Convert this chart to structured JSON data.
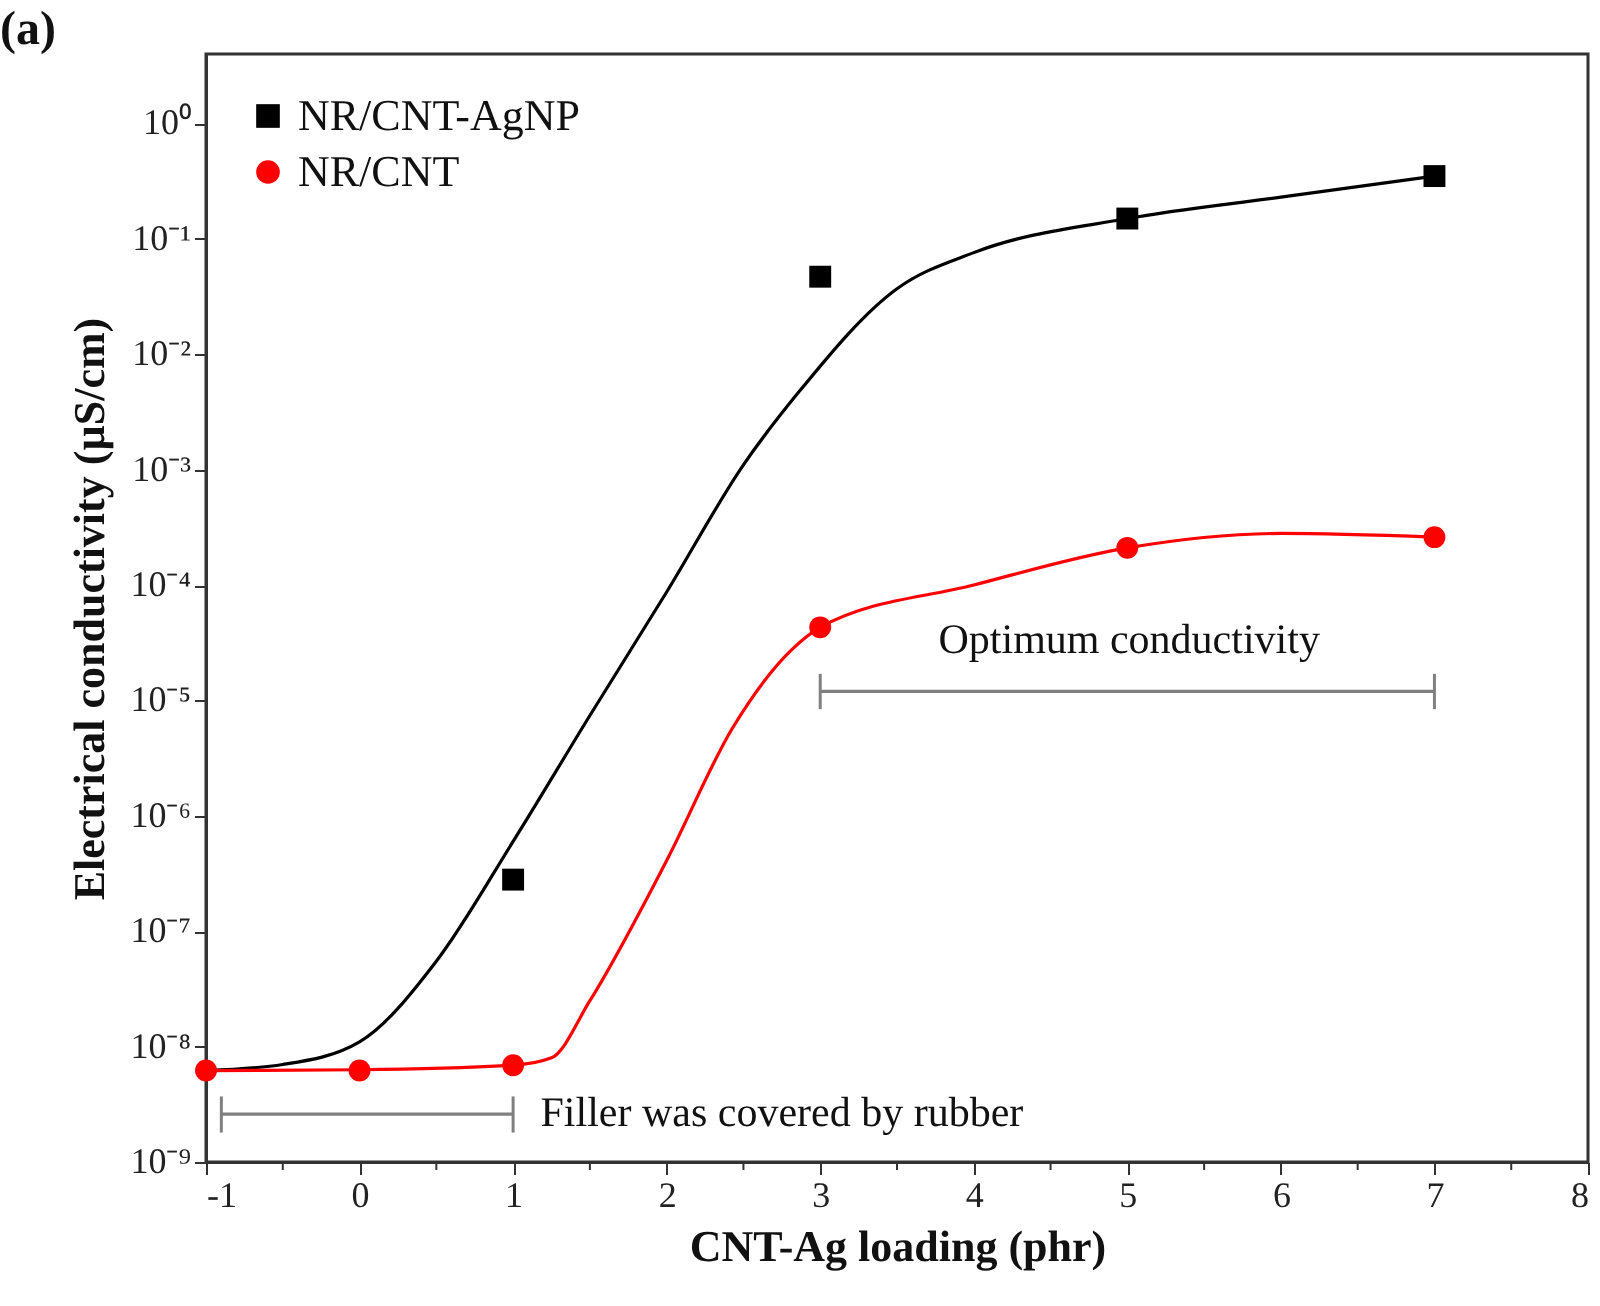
{
  "chart_data": {
    "type": "scatter",
    "title": "(a)",
    "xlabel": "CNT-Ag loading (phr)",
    "ylabel": "Electrical conductivity (µS/cm)",
    "x": [
      -1,
      0,
      1,
      3,
      5,
      7
    ],
    "series": [
      {
        "name": "NR/CNT-AgNP",
        "type": "scatter",
        "marker": "square",
        "color": "#000000",
        "values": [
          null,
          null,
          2.8e-07,
          0.047,
          0.15,
          0.35
        ]
      },
      {
        "name": "NR/CNT",
        "type": "scatter",
        "marker": "circle",
        "color": "#ff0000",
        "values": [
          6.2e-09,
          6.2e-09,
          6.9e-09,
          4.3e-05,
          0.00021,
          0.00026
        ]
      },
      {
        "type": "line",
        "marker": "none",
        "color": "#000000",
        "x": [
          -1,
          -0.5,
          0,
          0.5,
          1,
          1.5,
          2,
          2.5,
          2.86,
          3.5,
          4,
          5,
          6,
          7
        ],
        "values": [
          6.2e-09,
          7e-09,
          1.1e-08,
          5.5e-08,
          6e-07,
          7.4e-06,
          8.7e-05,
          0.0011,
          0.0047,
          0.037,
          0.076,
          0.15,
          0.23,
          0.35
        ]
      },
      {
        "type": "line",
        "marker": "none",
        "color": "#ff0000",
        "x": [
          -1,
          0,
          1,
          1.25,
          1.5,
          2,
          2.43,
          2.82,
          3,
          4,
          5,
          6,
          7
        ],
        "values": [
          6.2e-09,
          6.3e-09,
          6.9e-09,
          8e-09,
          2.5e-08,
          4.1e-07,
          5.8e-06,
          2.8e-05,
          4.3e-05,
          0.0001,
          0.00021,
          0.00028,
          0.00026
        ]
      },
      {
        "type": "line",
        "marker": "none",
        "color": "#808080",
        "x": [
          -0.9,
          1
        ],
        "values": [
          2.6e-09,
          2.6e-09
        ],
        "errors": [
          [
            1.8e-09,
            3.7e-09
          ],
          [
            1.8e-09,
            3.7e-09
          ]
        ]
      },
      {
        "type": "line",
        "marker": "none",
        "color": "#808080",
        "x": [
          3,
          7
        ],
        "values": [
          1.2e-05,
          1.2e-05
        ],
        "errors": [
          [
            8.4e-06,
            1.7e-05
          ],
          [
            8.4e-06,
            1.7e-05
          ]
        ]
      }
    ],
    "annotations": [
      "Filler was covered by rubber",
      "Optimum conductivity"
    ],
    "log": "y",
    "legend": "top left",
    "xlim": [
      -1,
      8
    ],
    "xticks": [
      -1,
      {
        "value": -0.5,
        "label": null
      },
      0,
      {
        "value": 0.5,
        "label": null
      },
      1,
      {
        "value": 1.5,
        "label": null
      },
      2,
      {
        "value": 2.5,
        "label": null
      },
      3,
      {
        "value": 3.5,
        "label": null
      },
      4,
      {
        "value": 4.5,
        "label": null
      },
      5,
      {
        "value": 5.5,
        "label": null
      },
      6,
      {
        "value": 6.5,
        "label": null
      },
      7,
      {
        "value": 7.5,
        "label": null
      },
      8
    ],
    "ylim": [
      1e-09,
      4
    ],
    "yticks": [
      {
        "value": 1e-09,
        "label": "10⁻⁹"
      },
      {
        "value": 1e-08,
        "label": "10⁻⁸"
      },
      {
        "value": 1e-07,
        "label": "10⁻⁷"
      },
      {
        "value": 1e-06,
        "label": "10⁻⁶"
      },
      {
        "value": 1e-05,
        "label": "10⁻⁵"
      },
      {
        "value": 0.0001,
        "label": "10⁻⁴"
      },
      {
        "value": 0.001,
        "label": "10⁻³"
      },
      {
        "value": 0.01,
        "label": "10⁻²"
      },
      {
        "value": 0.1,
        "label": "10⁻¹"
      },
      {
        "value": 1,
        "label": "10⁰"
      }
    ]
  }
}
